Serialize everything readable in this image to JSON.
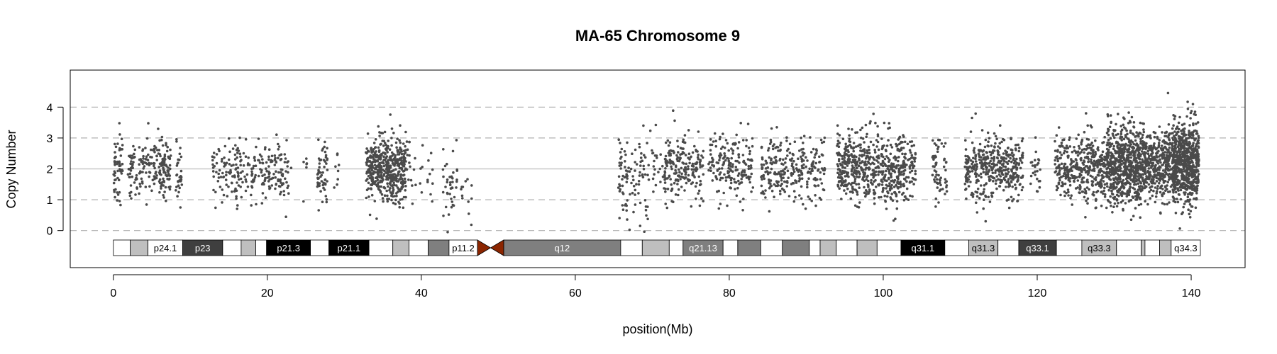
{
  "chart_data": {
    "type": "scatter",
    "title": "MA-65  Chromosome 9",
    "xlabel": "position(Mb)",
    "ylabel": "Copy Number",
    "xlim": [
      -5.6,
      147
    ],
    "ylim": [
      -1.2,
      5.2
    ],
    "x_ticks": [
      0,
      20,
      40,
      60,
      80,
      100,
      120,
      140
    ],
    "y_ticks": [
      0,
      1,
      2,
      3,
      4
    ],
    "grid": {
      "dashed_y": [
        0,
        1,
        3,
        4
      ],
      "solid_y": [
        2
      ]
    },
    "point_color": "#4a4a4a",
    "centromere_color": "#8b2500",
    "segments": [
      {
        "start": 0.0,
        "end": 1.2,
        "n": 55,
        "mean": 2.0,
        "sd": 0.55
      },
      {
        "start": 1.9,
        "end": 3.1,
        "n": 40,
        "mean": 2.0,
        "sd": 0.45
      },
      {
        "start": 3.3,
        "end": 5.0,
        "n": 50,
        "mean": 2.1,
        "sd": 0.5
      },
      {
        "start": 5.1,
        "end": 7.5,
        "n": 110,
        "mean": 2.05,
        "sd": 0.4
      },
      {
        "start": 8.1,
        "end": 8.9,
        "n": 30,
        "mean": 1.7,
        "sd": 0.55
      },
      {
        "start": 12.8,
        "end": 15.6,
        "n": 60,
        "mean": 1.95,
        "sd": 0.4
      },
      {
        "start": 15.7,
        "end": 18.6,
        "n": 80,
        "mean": 1.95,
        "sd": 0.45
      },
      {
        "start": 18.8,
        "end": 23.1,
        "n": 110,
        "mean": 2.0,
        "sd": 0.55
      },
      {
        "start": 24.6,
        "end": 25.4,
        "n": 6,
        "mean": 1.8,
        "sd": 0.5
      },
      {
        "start": 26.5,
        "end": 27.8,
        "n": 55,
        "mean": 1.9,
        "sd": 0.6
      },
      {
        "start": 28.5,
        "end": 29.3,
        "n": 8,
        "mean": 2.1,
        "sd": 0.4
      },
      {
        "start": 32.8,
        "end": 38.0,
        "n": 480,
        "mean": 2.0,
        "sd": 0.5
      },
      {
        "start": 38.1,
        "end": 41.5,
        "n": 30,
        "mean": 1.9,
        "sd": 0.6
      },
      {
        "start": 42.8,
        "end": 44.7,
        "n": 40,
        "mean": 1.5,
        "sd": 0.6
      },
      {
        "start": 45.0,
        "end": 46.8,
        "n": 12,
        "mean": 1.2,
        "sd": 0.6
      },
      {
        "start": 65.6,
        "end": 66.8,
        "n": 45,
        "mean": 1.8,
        "sd": 0.7
      },
      {
        "start": 66.9,
        "end": 71.4,
        "n": 75,
        "mean": 1.8,
        "sd": 0.65
      },
      {
        "start": 71.5,
        "end": 74.5,
        "n": 130,
        "mean": 2.05,
        "sd": 0.55
      },
      {
        "start": 74.6,
        "end": 76.7,
        "n": 70,
        "mean": 2.0,
        "sd": 0.5
      },
      {
        "start": 77.3,
        "end": 83.1,
        "n": 180,
        "mean": 2.0,
        "sd": 0.5
      },
      {
        "start": 84.1,
        "end": 89.8,
        "n": 200,
        "mean": 1.95,
        "sd": 0.5
      },
      {
        "start": 89.9,
        "end": 92.5,
        "n": 70,
        "mean": 2.0,
        "sd": 0.5
      },
      {
        "start": 94.0,
        "end": 98.5,
        "n": 300,
        "mean": 2.1,
        "sd": 0.55
      },
      {
        "start": 98.6,
        "end": 102.9,
        "n": 280,
        "mean": 2.0,
        "sd": 0.6
      },
      {
        "start": 103.0,
        "end": 104.2,
        "n": 50,
        "mean": 1.95,
        "sd": 0.5
      },
      {
        "start": 106.4,
        "end": 108.3,
        "n": 60,
        "mean": 1.9,
        "sd": 0.5
      },
      {
        "start": 110.6,
        "end": 118.2,
        "n": 420,
        "mean": 2.0,
        "sd": 0.5
      },
      {
        "start": 119.1,
        "end": 120.4,
        "n": 25,
        "mean": 1.95,
        "sd": 0.45
      },
      {
        "start": 122.3,
        "end": 124.9,
        "n": 130,
        "mean": 2.05,
        "sd": 0.5
      },
      {
        "start": 125.0,
        "end": 128.9,
        "n": 260,
        "mean": 2.05,
        "sd": 0.55
      },
      {
        "start": 129.0,
        "end": 133.5,
        "n": 650,
        "mean": 2.1,
        "sd": 0.6
      },
      {
        "start": 133.6,
        "end": 137.4,
        "n": 420,
        "mean": 2.1,
        "sd": 0.55
      },
      {
        "start": 137.5,
        "end": 141.0,
        "n": 700,
        "mean": 2.2,
        "sd": 0.65
      }
    ],
    "cytobands": [
      {
        "start": 0.0,
        "end": 2.2,
        "shade": "white",
        "label": ""
      },
      {
        "start": 2.2,
        "end": 4.5,
        "shade": "gray25",
        "label": ""
      },
      {
        "start": 4.5,
        "end": 9.0,
        "shade": "white",
        "label": "p24.1"
      },
      {
        "start": 9.0,
        "end": 14.2,
        "shade": "gray75",
        "label": "p23"
      },
      {
        "start": 14.2,
        "end": 16.6,
        "shade": "white",
        "label": ""
      },
      {
        "start": 16.6,
        "end": 18.5,
        "shade": "gray25",
        "label": ""
      },
      {
        "start": 18.5,
        "end": 19.9,
        "shade": "white",
        "label": ""
      },
      {
        "start": 19.9,
        "end": 25.6,
        "shade": "gray100",
        "label": "p21.3"
      },
      {
        "start": 25.6,
        "end": 28.0,
        "shade": "white",
        "label": ""
      },
      {
        "start": 28.0,
        "end": 33.2,
        "shade": "gray100",
        "label": "p21.1"
      },
      {
        "start": 33.2,
        "end": 36.3,
        "shade": "white",
        "label": ""
      },
      {
        "start": 36.3,
        "end": 38.4,
        "shade": "gray25",
        "label": ""
      },
      {
        "start": 38.4,
        "end": 40.9,
        "shade": "white",
        "label": ""
      },
      {
        "start": 40.9,
        "end": 43.6,
        "shade": "gray50",
        "label": ""
      },
      {
        "start": 43.6,
        "end": 47.3,
        "shade": "white",
        "label": "p11.2"
      },
      {
        "start": 50.7,
        "end": 65.9,
        "shade": "gray50",
        "label": "q12"
      },
      {
        "start": 65.9,
        "end": 68.7,
        "shade": "white",
        "label": ""
      },
      {
        "start": 68.7,
        "end": 72.2,
        "shade": "gray25",
        "label": ""
      },
      {
        "start": 72.2,
        "end": 74.0,
        "shade": "white",
        "label": ""
      },
      {
        "start": 74.0,
        "end": 79.2,
        "shade": "gray50",
        "label": "q21.13"
      },
      {
        "start": 79.2,
        "end": 81.1,
        "shade": "white",
        "label": ""
      },
      {
        "start": 81.1,
        "end": 84.1,
        "shade": "gray50",
        "label": ""
      },
      {
        "start": 84.1,
        "end": 86.9,
        "shade": "white",
        "label": ""
      },
      {
        "start": 86.9,
        "end": 90.4,
        "shade": "gray50",
        "label": ""
      },
      {
        "start": 90.4,
        "end": 91.8,
        "shade": "white",
        "label": ""
      },
      {
        "start": 91.8,
        "end": 93.9,
        "shade": "gray25",
        "label": ""
      },
      {
        "start": 93.9,
        "end": 96.6,
        "shade": "white",
        "label": ""
      },
      {
        "start": 96.6,
        "end": 99.2,
        "shade": "gray25",
        "label": ""
      },
      {
        "start": 99.2,
        "end": 102.3,
        "shade": "white",
        "label": ""
      },
      {
        "start": 102.3,
        "end": 108.0,
        "shade": "gray100",
        "label": "q31.1"
      },
      {
        "start": 108.0,
        "end": 111.1,
        "shade": "white",
        "label": ""
      },
      {
        "start": 111.1,
        "end": 114.9,
        "shade": "gray25",
        "label": "q31.3"
      },
      {
        "start": 114.9,
        "end": 117.6,
        "shade": "white",
        "label": ""
      },
      {
        "start": 117.6,
        "end": 122.5,
        "shade": "gray75",
        "label": "q33.1"
      },
      {
        "start": 122.5,
        "end": 125.8,
        "shade": "white",
        "label": ""
      },
      {
        "start": 125.8,
        "end": 130.3,
        "shade": "gray25",
        "label": "q33.3"
      },
      {
        "start": 130.3,
        "end": 133.5,
        "shade": "white",
        "label": ""
      },
      {
        "start": 133.5,
        "end": 134.0,
        "shade": "gray25",
        "label": ""
      },
      {
        "start": 134.0,
        "end": 135.9,
        "shade": "white",
        "label": ""
      },
      {
        "start": 135.9,
        "end": 137.4,
        "shade": "gray25",
        "label": ""
      },
      {
        "start": 137.4,
        "end": 141.2,
        "shade": "white",
        "label": "q34.3"
      }
    ],
    "centromere": {
      "start": 47.3,
      "mid": 49.0,
      "end": 50.7
    },
    "shade_colors": {
      "white": "#ffffff",
      "gray25": "#bfbfbf",
      "gray50": "#7f7f7f",
      "gray75": "#3f3f3f",
      "gray100": "#000000"
    }
  }
}
